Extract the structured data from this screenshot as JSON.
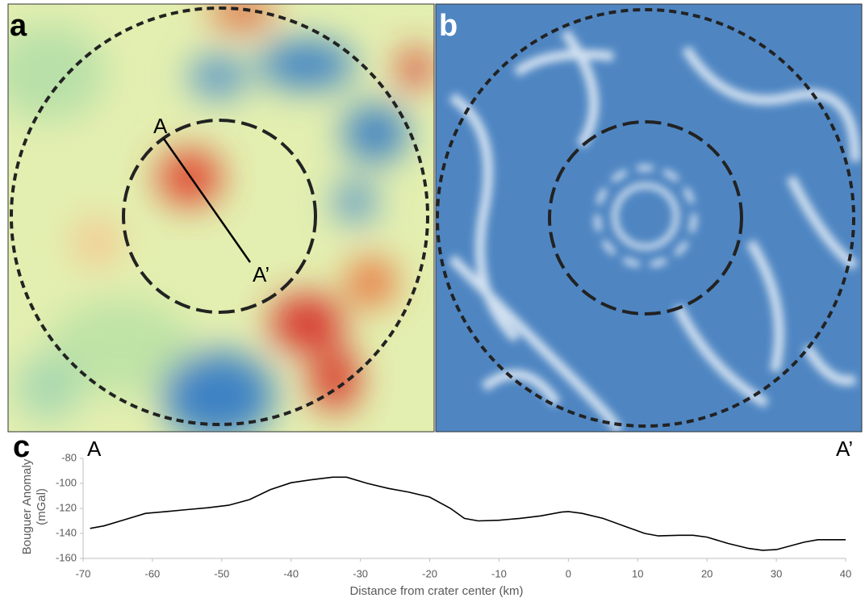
{
  "panels": {
    "a": {
      "label": "a",
      "profile_start": "A",
      "profile_end": "A’"
    },
    "b": {
      "label": "b"
    }
  },
  "chart_data": {
    "type": "line",
    "panel_label": "c",
    "start_label": "A",
    "end_label": "A’",
    "xlabel": "Distance from crater center (km)",
    "ylabel": [
      "Bouguer Anomaly",
      "(mGal)"
    ],
    "x": [
      -69,
      -67,
      -64,
      -61,
      -58,
      -55,
      -52,
      -49,
      -46,
      -43,
      -40,
      -37,
      -34,
      -32,
      -29,
      -26,
      -23,
      -20,
      -17,
      -15,
      -13,
      -10,
      -7,
      -4,
      -1,
      0,
      2,
      5,
      8,
      11,
      13,
      16,
      18,
      20,
      23,
      26,
      28,
      30,
      32,
      34,
      36,
      40
    ],
    "values": [
      -136,
      -134,
      -129,
      -124,
      -122.5,
      -121,
      -119.5,
      -117.5,
      -113,
      -105,
      -99.5,
      -97,
      -95,
      -95,
      -100,
      -104,
      -107,
      -111,
      -120,
      -128,
      -130,
      -129.5,
      -128,
      -126,
      -123,
      -122.5,
      -124,
      -128,
      -134,
      -140,
      -142,
      -141.5,
      -141.5,
      -143,
      -148,
      -152,
      -153.5,
      -153,
      -150,
      -147,
      -145,
      -145
    ],
    "color": "#000000",
    "xlim": [
      -70,
      40
    ],
    "xticks": [
      -70,
      -60,
      -50,
      -40,
      -30,
      -20,
      -10,
      0,
      10,
      20,
      30,
      40
    ],
    "ylim": [
      -160,
      -80
    ],
    "yticks": [
      -160,
      -140,
      -120,
      -100,
      -80
    ]
  }
}
